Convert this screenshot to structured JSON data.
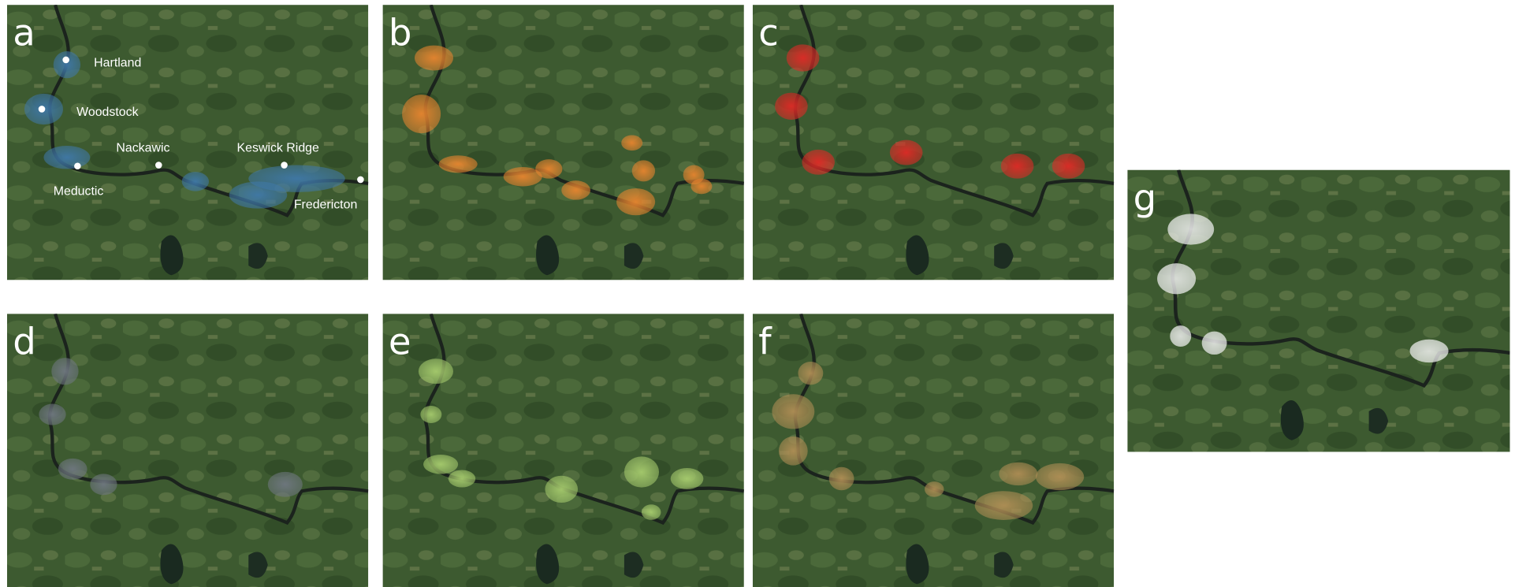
{
  "panels": [
    {
      "label": "a"
    },
    {
      "label": "b"
    },
    {
      "label": "c"
    },
    {
      "label": "d"
    },
    {
      "label": "e"
    },
    {
      "label": "f"
    },
    {
      "label": "g"
    }
  ],
  "places": [
    "Hartland",
    "Woodstock",
    "Nackawic",
    "Keswick Ridge",
    "Meductic",
    "Fredericton"
  ]
}
